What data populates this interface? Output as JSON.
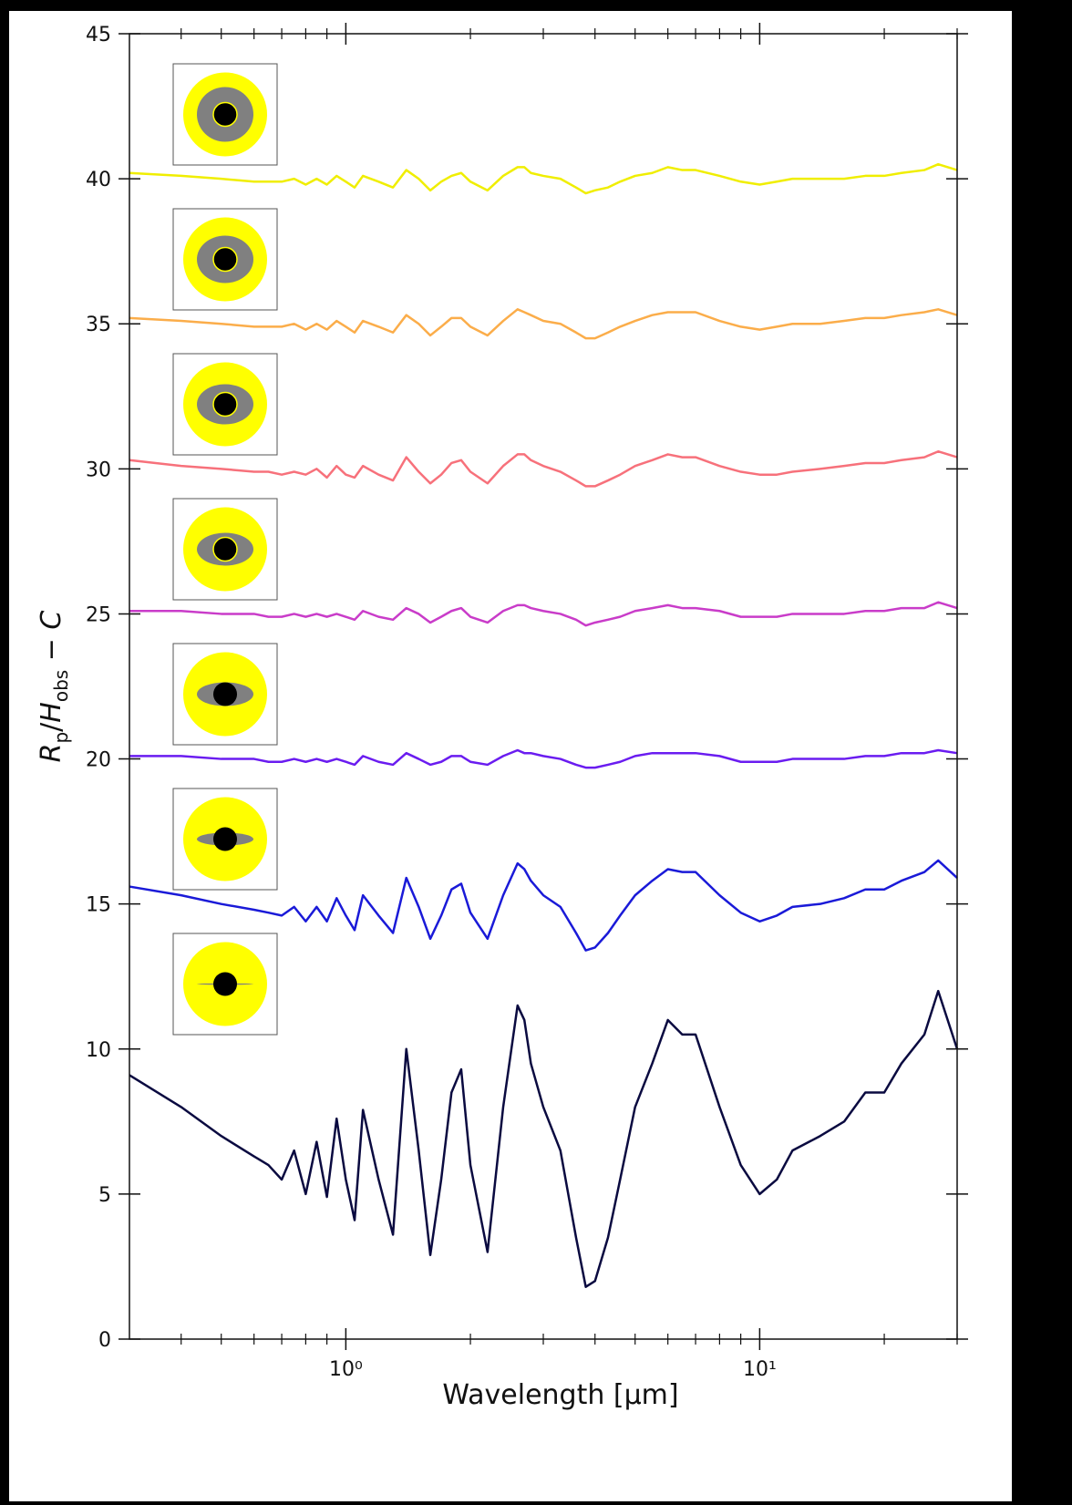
{
  "chart_data": {
    "type": "line",
    "xlabel": "Wavelength [µm]",
    "ylabel_parts": [
      "R",
      "p",
      "/",
      "H",
      "obs",
      " − ",
      "C"
    ],
    "xscale": "log",
    "xlim": [
      0.3,
      30
    ],
    "ylim": [
      0,
      45
    ],
    "xticks": [
      {
        "value": 1,
        "label": "10⁰"
      },
      {
        "value": 10,
        "label": "10¹"
      }
    ],
    "xminorticks": [
      0.4,
      0.5,
      0.6,
      0.7,
      0.8,
      0.9,
      2,
      3,
      4,
      5,
      6,
      7,
      8,
      9,
      20,
      30
    ],
    "yticks": [
      0,
      5,
      10,
      15,
      20,
      25,
      30,
      35,
      40,
      45
    ],
    "x": [
      0.3,
      0.4,
      0.5,
      0.6,
      0.65,
      0.7,
      0.75,
      0.8,
      0.85,
      0.9,
      0.95,
      1.0,
      1.05,
      1.1,
      1.2,
      1.3,
      1.4,
      1.5,
      1.6,
      1.7,
      1.8,
      1.9,
      2.0,
      2.2,
      2.4,
      2.6,
      2.7,
      2.8,
      3.0,
      3.3,
      3.6,
      3.8,
      4.0,
      4.3,
      4.6,
      5.0,
      5.5,
      6.0,
      6.5,
      7.0,
      8,
      9,
      10,
      11,
      12,
      14,
      16,
      18,
      20,
      22,
      25,
      27,
      30
    ],
    "series": [
      {
        "color": "#f0ee00",
        "values": [
          40.2,
          40.1,
          40.0,
          39.9,
          39.9,
          39.9,
          40.0,
          39.8,
          40.0,
          39.8,
          40.1,
          39.9,
          39.7,
          40.1,
          39.9,
          39.7,
          40.3,
          40.0,
          39.6,
          39.9,
          40.1,
          40.2,
          39.9,
          39.6,
          40.1,
          40.4,
          40.4,
          40.2,
          40.1,
          40.0,
          39.7,
          39.5,
          39.6,
          39.7,
          39.9,
          40.1,
          40.2,
          40.4,
          40.3,
          40.3,
          40.1,
          39.9,
          39.8,
          39.9,
          40.0,
          40.0,
          40.0,
          40.1,
          40.1,
          40.2,
          40.3,
          40.5,
          40.3
        ]
      },
      {
        "color": "#fbad4a",
        "values": [
          35.2,
          35.1,
          35.0,
          34.9,
          34.9,
          34.9,
          35.0,
          34.8,
          35.0,
          34.8,
          35.1,
          34.9,
          34.7,
          35.1,
          34.9,
          34.7,
          35.3,
          35.0,
          34.6,
          34.9,
          35.2,
          35.2,
          34.9,
          34.6,
          35.1,
          35.5,
          35.4,
          35.3,
          35.1,
          35.0,
          34.7,
          34.5,
          34.5,
          34.7,
          34.9,
          35.1,
          35.3,
          35.4,
          35.4,
          35.4,
          35.1,
          34.9,
          34.8,
          34.9,
          35.0,
          35.0,
          35.1,
          35.2,
          35.2,
          35.3,
          35.4,
          35.5,
          35.3
        ]
      },
      {
        "color": "#f7717b",
        "values": [
          30.3,
          30.1,
          30.0,
          29.9,
          29.9,
          29.8,
          29.9,
          29.8,
          30.0,
          29.7,
          30.1,
          29.8,
          29.7,
          30.1,
          29.8,
          29.6,
          30.4,
          29.9,
          29.5,
          29.8,
          30.2,
          30.3,
          29.9,
          29.5,
          30.1,
          30.5,
          30.5,
          30.3,
          30.1,
          29.9,
          29.6,
          29.4,
          29.4,
          29.6,
          29.8,
          30.1,
          30.3,
          30.5,
          30.4,
          30.4,
          30.1,
          29.9,
          29.8,
          29.8,
          29.9,
          30.0,
          30.1,
          30.2,
          30.2,
          30.3,
          30.4,
          30.6,
          30.4
        ]
      },
      {
        "color": "#c93cc9",
        "values": [
          25.1,
          25.1,
          25.0,
          25.0,
          24.9,
          24.9,
          25.0,
          24.9,
          25.0,
          24.9,
          25.0,
          24.9,
          24.8,
          25.1,
          24.9,
          24.8,
          25.2,
          25.0,
          24.7,
          24.9,
          25.1,
          25.2,
          24.9,
          24.7,
          25.1,
          25.3,
          25.3,
          25.2,
          25.1,
          25.0,
          24.8,
          24.6,
          24.7,
          24.8,
          24.9,
          25.1,
          25.2,
          25.3,
          25.2,
          25.2,
          25.1,
          24.9,
          24.9,
          24.9,
          25.0,
          25.0,
          25.0,
          25.1,
          25.1,
          25.2,
          25.2,
          25.4,
          25.2
        ]
      },
      {
        "color": "#6a1cf0",
        "values": [
          20.1,
          20.1,
          20.0,
          20.0,
          19.9,
          19.9,
          20.0,
          19.9,
          20.0,
          19.9,
          20.0,
          19.9,
          19.8,
          20.1,
          19.9,
          19.8,
          20.2,
          20.0,
          19.8,
          19.9,
          20.1,
          20.1,
          19.9,
          19.8,
          20.1,
          20.3,
          20.2,
          20.2,
          20.1,
          20.0,
          19.8,
          19.7,
          19.7,
          19.8,
          19.9,
          20.1,
          20.2,
          20.2,
          20.2,
          20.2,
          20.1,
          19.9,
          19.9,
          19.9,
          20.0,
          20.0,
          20.0,
          20.1,
          20.1,
          20.2,
          20.2,
          20.3,
          20.2
        ]
      },
      {
        "color": "#1a1ad8",
        "values": [
          15.6,
          15.3,
          15.0,
          14.8,
          14.7,
          14.6,
          14.9,
          14.4,
          14.9,
          14.4,
          15.2,
          14.6,
          14.1,
          15.3,
          14.6,
          14.0,
          15.9,
          14.9,
          13.8,
          14.6,
          15.5,
          15.7,
          14.7,
          13.8,
          15.3,
          16.4,
          16.2,
          15.8,
          15.3,
          14.9,
          14.0,
          13.4,
          13.5,
          14.0,
          14.6,
          15.3,
          15.8,
          16.2,
          16.1,
          16.1,
          15.3,
          14.7,
          14.4,
          14.6,
          14.9,
          15.0,
          15.2,
          15.5,
          15.5,
          15.8,
          16.1,
          16.5,
          15.9
        ]
      },
      {
        "color": "#0a0a40",
        "values": [
          9.1,
          8.0,
          7.0,
          6.3,
          6.0,
          5.5,
          6.5,
          5.0,
          6.8,
          4.9,
          7.6,
          5.5,
          4.1,
          7.9,
          5.5,
          3.6,
          10.0,
          6.5,
          2.9,
          5.5,
          8.5,
          9.3,
          6.0,
          3.0,
          8.0,
          11.5,
          11.0,
          9.5,
          8.0,
          6.5,
          3.5,
          1.8,
          2.0,
          3.5,
          5.5,
          8.0,
          9.5,
          11.0,
          10.5,
          10.5,
          8.0,
          6.0,
          5.0,
          5.5,
          6.5,
          7.0,
          7.5,
          8.5,
          8.5,
          9.5,
          10.5,
          12.0,
          10.0
        ]
      }
    ]
  }
}
